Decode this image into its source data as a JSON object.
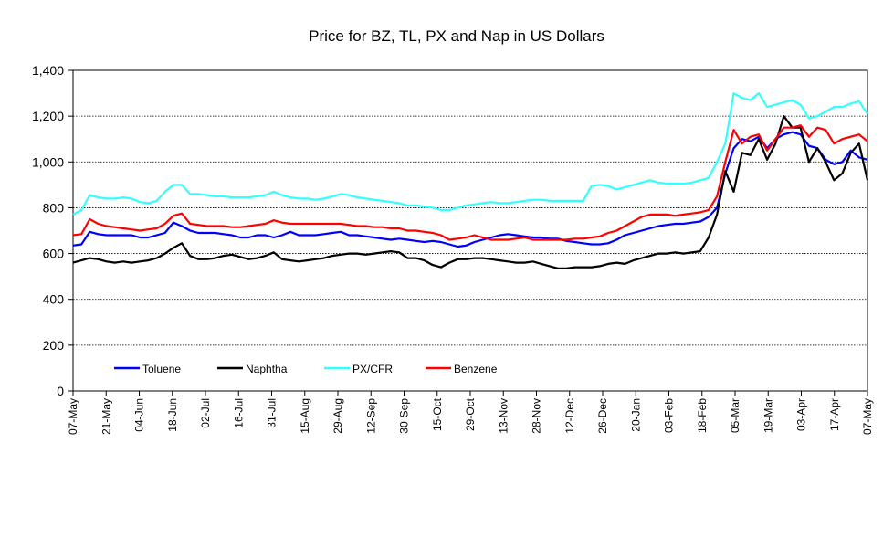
{
  "chart_data": {
    "type": "line",
    "title": "Price for BZ, TL, PX and Nap in US Dollars",
    "xlabel": "",
    "ylabel": "",
    "ylim": [
      0,
      1400
    ],
    "yticks": [
      0,
      200,
      400,
      600,
      800,
      1000,
      1200,
      1400
    ],
    "ytick_labels": [
      "0",
      "200",
      "400",
      "600",
      "800",
      "1,000",
      "1,200",
      "1,400"
    ],
    "grid": "horizontal",
    "legend_position": "bottom-left",
    "x_tick_labels": [
      "07-May",
      "21-May",
      "04-Jun",
      "18-Jun",
      "02-Jul",
      "16-Jul",
      "31-Jul",
      "15-Aug",
      "29-Aug",
      "12-Sep",
      "30-Sep",
      "15-Oct",
      "29-Oct",
      "13-Nov",
      "28-Nov",
      "12-Dec",
      "26-Dec",
      "20-Jan",
      "03-Feb",
      "18-Feb",
      "05-Mar",
      "19-Mar",
      "03-Apr",
      "17-Apr",
      "07-May"
    ],
    "series": [
      {
        "name": "Toluene",
        "color": "#0000ff",
        "values": [
          635,
          640,
          695,
          685,
          680,
          680,
          680,
          680,
          670,
          670,
          680,
          690,
          735,
          720,
          700,
          690,
          690,
          690,
          685,
          680,
          670,
          670,
          680,
          680,
          670,
          680,
          695,
          680,
          680,
          680,
          685,
          690,
          695,
          680,
          680,
          675,
          670,
          665,
          660,
          665,
          660,
          655,
          650,
          655,
          650,
          640,
          630,
          635,
          650,
          660,
          670,
          680,
          685,
          680,
          675,
          670,
          670,
          665,
          665,
          655,
          650,
          645,
          640,
          640,
          645,
          660,
          680,
          690,
          700,
          710,
          720,
          725,
          730,
          730,
          735,
          740,
          760,
          800,
          950,
          1060,
          1100,
          1090,
          1110,
          1060,
          1100,
          1120,
          1130,
          1120,
          1070,
          1060,
          1010,
          990,
          1000,
          1050,
          1020,
          1010
        ]
      },
      {
        "name": "Naphtha",
        "color": "#000000",
        "values": [
          560,
          570,
          580,
          575,
          565,
          560,
          565,
          560,
          565,
          570,
          580,
          600,
          625,
          645,
          590,
          575,
          575,
          580,
          590,
          595,
          585,
          575,
          580,
          590,
          605,
          575,
          570,
          565,
          570,
          575,
          580,
          590,
          595,
          600,
          600,
          595,
          600,
          605,
          610,
          605,
          580,
          580,
          570,
          550,
          540,
          560,
          575,
          575,
          580,
          580,
          575,
          570,
          565,
          560,
          560,
          565,
          555,
          545,
          535,
          535,
          540,
          540,
          540,
          545,
          555,
          560,
          555,
          570,
          580,
          590,
          600,
          600,
          605,
          600,
          605,
          610,
          670,
          770,
          960,
          870,
          1040,
          1030,
          1100,
          1010,
          1080,
          1200,
          1150,
          1150,
          1000,
          1060,
          1000,
          920,
          950,
          1040,
          1080,
          920
        ]
      },
      {
        "name": "PX/CFR",
        "color": "#33ffff",
        "values": [
          770,
          790,
          855,
          845,
          840,
          840,
          845,
          840,
          825,
          820,
          830,
          870,
          900,
          900,
          860,
          860,
          855,
          850,
          850,
          845,
          845,
          845,
          850,
          855,
          870,
          855,
          845,
          840,
          840,
          835,
          840,
          850,
          860,
          855,
          845,
          840,
          835,
          830,
          825,
          820,
          810,
          810,
          805,
          800,
          790,
          790,
          800,
          810,
          815,
          820,
          825,
          820,
          820,
          825,
          830,
          835,
          835,
          830,
          830,
          830,
          830,
          830,
          895,
          900,
          895,
          880,
          890,
          900,
          910,
          920,
          910,
          905,
          905,
          905,
          910,
          920,
          930,
          1000,
          1080,
          1300,
          1280,
          1270,
          1300,
          1240,
          1250,
          1260,
          1270,
          1250,
          1190,
          1200,
          1220,
          1240,
          1240,
          1255,
          1265,
          1210
        ]
      },
      {
        "name": "Benzene",
        "color": "#ff0000",
        "values": [
          680,
          685,
          750,
          730,
          720,
          715,
          710,
          705,
          700,
          705,
          710,
          730,
          765,
          775,
          730,
          725,
          720,
          720,
          720,
          715,
          715,
          720,
          725,
          730,
          745,
          735,
          730,
          730,
          730,
          730,
          730,
          730,
          730,
          725,
          720,
          720,
          715,
          715,
          710,
          710,
          700,
          700,
          695,
          690,
          680,
          660,
          665,
          670,
          680,
          670,
          660,
          660,
          660,
          665,
          670,
          660,
          660,
          660,
          660,
          660,
          665,
          665,
          670,
          675,
          690,
          700,
          720,
          740,
          760,
          770,
          770,
          770,
          765,
          770,
          775,
          780,
          790,
          850,
          1000,
          1140,
          1080,
          1110,
          1120,
          1050,
          1100,
          1150,
          1150,
          1160,
          1110,
          1150,
          1140,
          1080,
          1100,
          1110,
          1120,
          1090
        ]
      }
    ]
  }
}
